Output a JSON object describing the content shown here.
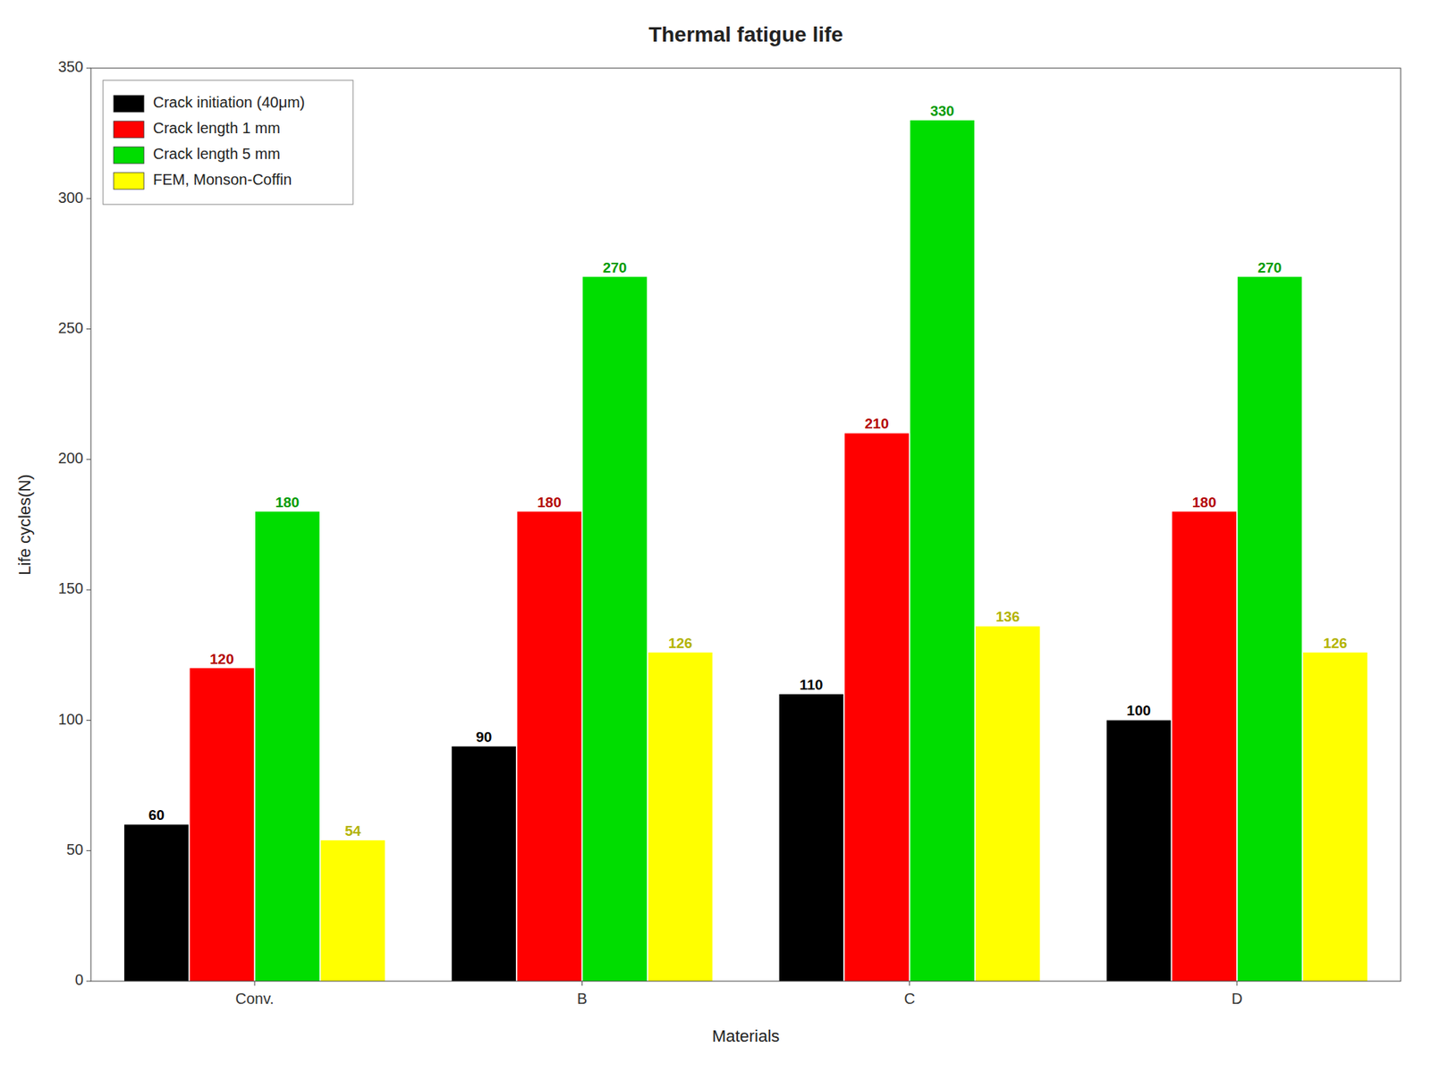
{
  "chart_data": {
    "type": "bar",
    "title": "Thermal fatigue life",
    "xlabel": "Materials",
    "ylabel": "Life cycles(N)",
    "categories": [
      "Conv.",
      "B",
      "C",
      "D"
    ],
    "series": [
      {
        "name": "Crack initiation (40μm)",
        "color": "#000000",
        "values": [
          60,
          90,
          110,
          100
        ]
      },
      {
        "name": "Crack length 1 mm",
        "color": "#ff0000",
        "values": [
          120,
          180,
          210,
          180
        ]
      },
      {
        "name": "Crack length 5 mm",
        "color": "#00dd00",
        "values": [
          180,
          270,
          330,
          270
        ]
      },
      {
        "name": "FEM, Monson-Coffin",
        "color": "#ffff00",
        "values": [
          54,
          126,
          136,
          126
        ]
      }
    ],
    "ylim": [
      0,
      350
    ],
    "yticks": [
      0,
      50,
      100,
      150,
      200,
      250,
      300,
      350
    ],
    "grid": false,
    "legend": "upper left",
    "data_labels": true
  }
}
